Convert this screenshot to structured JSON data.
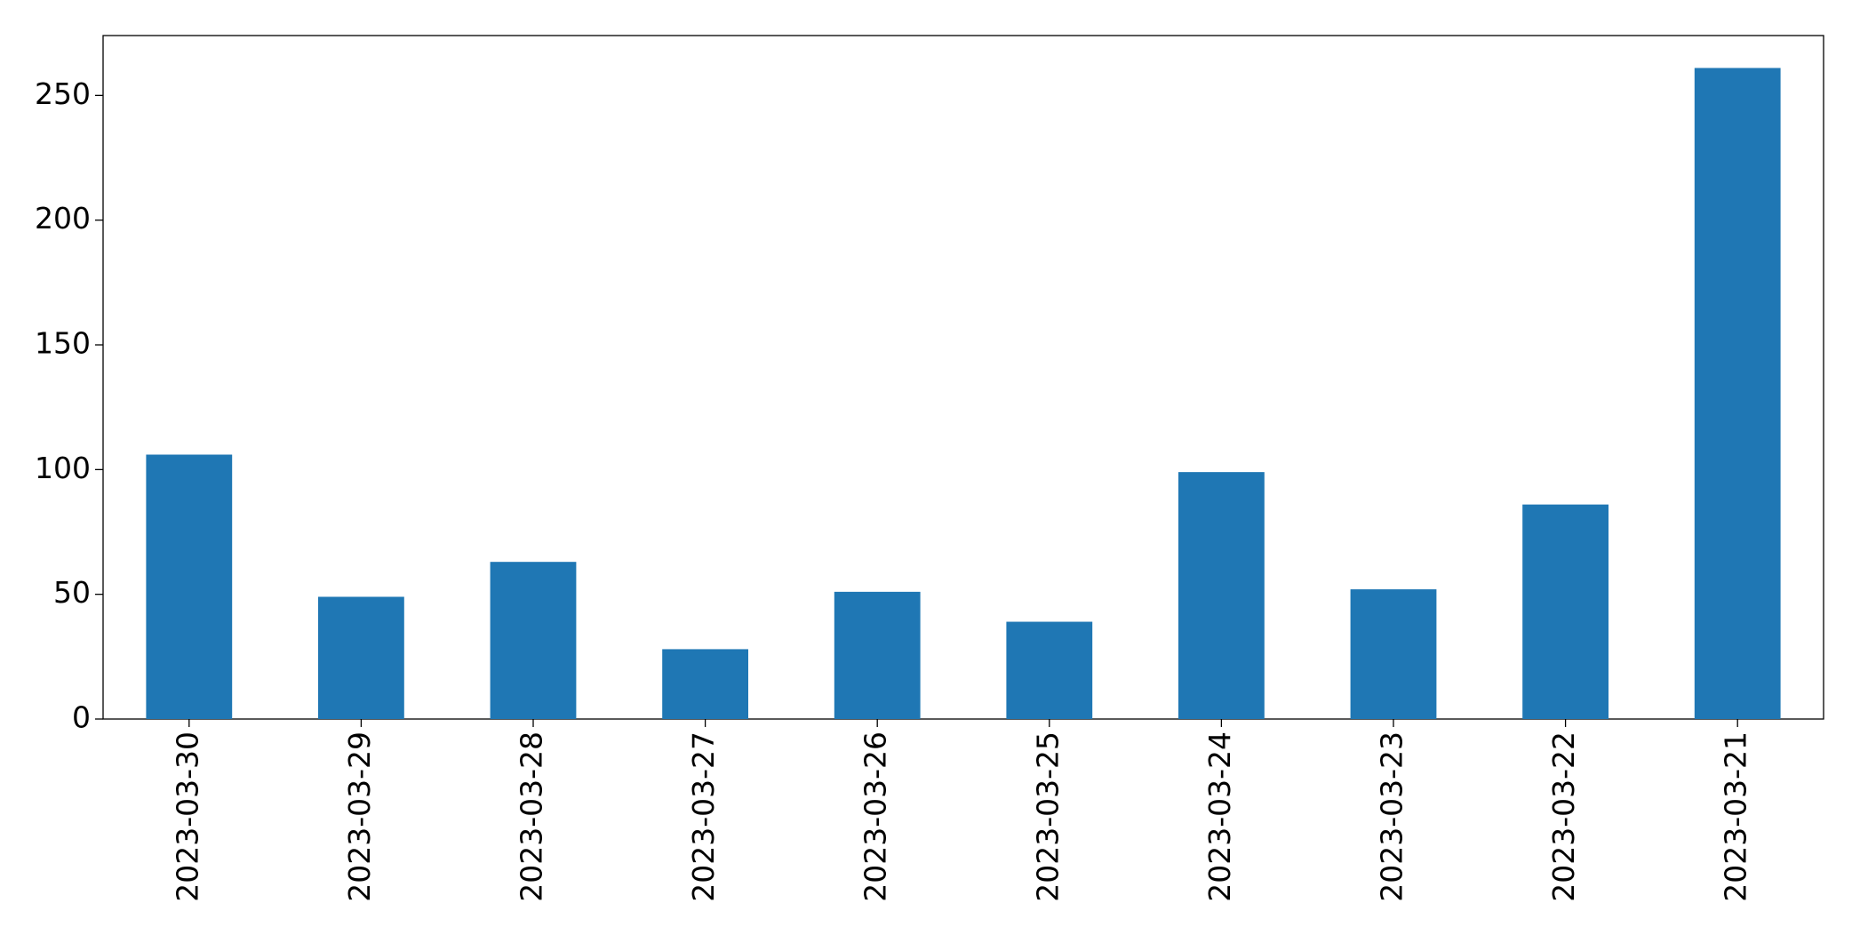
{
  "chart_data": {
    "type": "bar",
    "categories": [
      "2023-03-30",
      "2023-03-29",
      "2023-03-28",
      "2023-03-27",
      "2023-03-26",
      "2023-03-25",
      "2023-03-24",
      "2023-03-23",
      "2023-03-22",
      "2023-03-21"
    ],
    "values": [
      106,
      49,
      63,
      28,
      51,
      39,
      99,
      52,
      86,
      261
    ],
    "color": "#1f77b4",
    "ylim": [
      0,
      274
    ],
    "yticks": [
      0,
      50,
      100,
      150,
      200,
      250
    ],
    "grid": false
  }
}
